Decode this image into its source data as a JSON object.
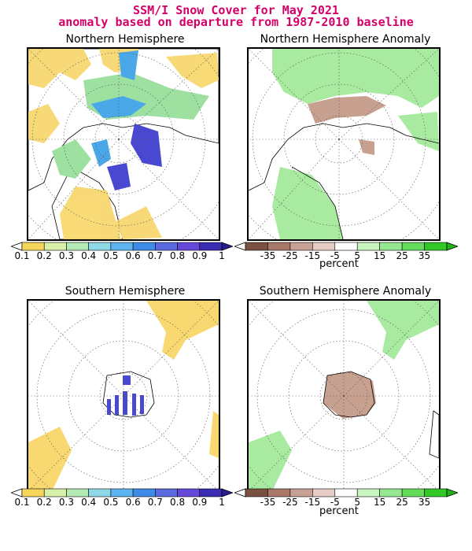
{
  "title_line1": "SSM/I Snow Cover for May 2021",
  "title_line2": "anomaly based on departure from 1987-2010 baseline",
  "panels": {
    "nh": {
      "title": "Northern Hemisphere"
    },
    "nh_anom": {
      "title": "Northern Hemisphere Anomaly"
    },
    "sh": {
      "title": "Southern Hemisphere"
    },
    "sh_anom": {
      "title": "Southern Hemisphere Anomaly"
    }
  },
  "snow_scale": {
    "labels": [
      "0.1",
      "0.2",
      "0.3",
      "0.4",
      "0.5",
      "0.6",
      "0.7",
      "0.8",
      "0.9",
      "1"
    ],
    "colors": [
      "#ffffff",
      "#f5d65a",
      "#d8f0a8",
      "#b4ebb4",
      "#8fd8e8",
      "#5cb4f0",
      "#3e8ce8",
      "#5c6ae0",
      "#6648d8",
      "#3a2cb0",
      "#2a1c90"
    ]
  },
  "anom_scale": {
    "labels": [
      "-35",
      "-25",
      "-15",
      "-5",
      "5",
      "15",
      "25",
      "35"
    ],
    "colors": [
      "#ffffff",
      "#7a5040",
      "#a87868",
      "#c9a094",
      "#e6ccc4",
      "#ffffff",
      "#c8f5c0",
      "#96e890",
      "#64dc5a",
      "#32c828",
      "#1eb414"
    ],
    "unit": "percent"
  },
  "colors": {
    "land": "#ffffff",
    "bare": "#f8d870",
    "snow_low": "#9ee0a0",
    "snow_mid": "#4aa8e8",
    "snow_high": "#4848d0",
    "anom_neg": "#c8a090",
    "anom_pos": "#a8eaa0"
  }
}
